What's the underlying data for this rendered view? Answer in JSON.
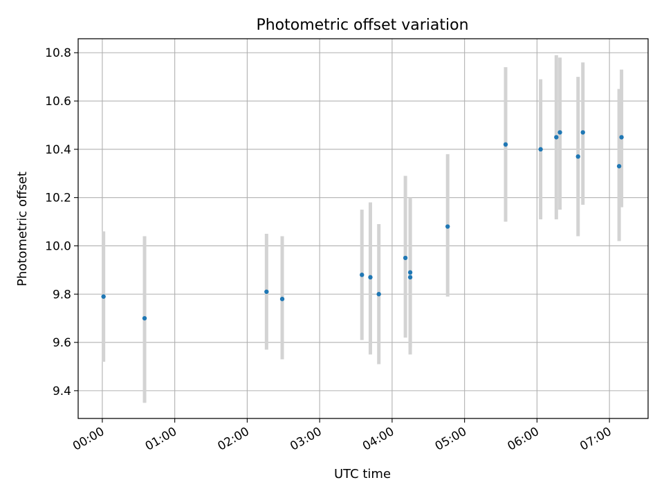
{
  "chart_data": {
    "type": "scatter",
    "title": "Photometric offset variation",
    "xlabel": "UTC time",
    "ylabel": "Photometric offset",
    "x_unit": "hours",
    "xlim": [
      "-00:20",
      "07:32"
    ],
    "ylim": [
      9.285,
      10.858
    ],
    "grid": true,
    "x_ticks": [
      "00:00",
      "01:00",
      "02:00",
      "03:00",
      "04:00",
      "05:00",
      "06:00",
      "07:00"
    ],
    "y_ticks": [
      "9.4",
      "9.6",
      "9.8",
      "10.0",
      "10.2",
      "10.4",
      "10.6",
      "10.8"
    ],
    "colors": {
      "marker": "#1f77b4",
      "errorbar": "#d3d3d3",
      "grid": "#b0b0b0"
    },
    "points": [
      {
        "x": "00:01",
        "y": 9.79,
        "ylo": 9.52,
        "yhi": 10.06
      },
      {
        "x": "00:35",
        "y": 9.7,
        "ylo": 9.35,
        "yhi": 10.04
      },
      {
        "x": "02:16",
        "y": 9.81,
        "ylo": 9.57,
        "yhi": 10.05
      },
      {
        "x": "02:29",
        "y": 9.78,
        "ylo": 9.53,
        "yhi": 10.04
      },
      {
        "x": "03:35",
        "y": 9.88,
        "ylo": 9.61,
        "yhi": 10.15
      },
      {
        "x": "03:42",
        "y": 9.87,
        "ylo": 9.55,
        "yhi": 10.18
      },
      {
        "x": "03:49",
        "y": 9.8,
        "ylo": 9.51,
        "yhi": 10.09
      },
      {
        "x": "04:11",
        "y": 9.95,
        "ylo": 9.62,
        "yhi": 10.29
      },
      {
        "x": "04:15",
        "y": 9.89,
        "ylo": 9.58,
        "yhi": 10.2
      },
      {
        "x": "04:15",
        "y": 9.87,
        "ylo": 9.55,
        "yhi": 10.19
      },
      {
        "x": "04:46",
        "y": 10.08,
        "ylo": 9.79,
        "yhi": 10.38
      },
      {
        "x": "05:34",
        "y": 10.42,
        "ylo": 10.1,
        "yhi": 10.74
      },
      {
        "x": "06:03",
        "y": 10.4,
        "ylo": 10.11,
        "yhi": 10.69
      },
      {
        "x": "06:16",
        "y": 10.45,
        "ylo": 10.11,
        "yhi": 10.79
      },
      {
        "x": "06:19",
        "y": 10.47,
        "ylo": 10.15,
        "yhi": 10.78
      },
      {
        "x": "06:34",
        "y": 10.37,
        "ylo": 10.04,
        "yhi": 10.7
      },
      {
        "x": "06:38",
        "y": 10.47,
        "ylo": 10.17,
        "yhi": 10.76
      },
      {
        "x": "07:08",
        "y": 10.33,
        "ylo": 10.02,
        "yhi": 10.65
      },
      {
        "x": "07:10",
        "y": 10.45,
        "ylo": 10.16,
        "yhi": 10.73
      }
    ]
  }
}
